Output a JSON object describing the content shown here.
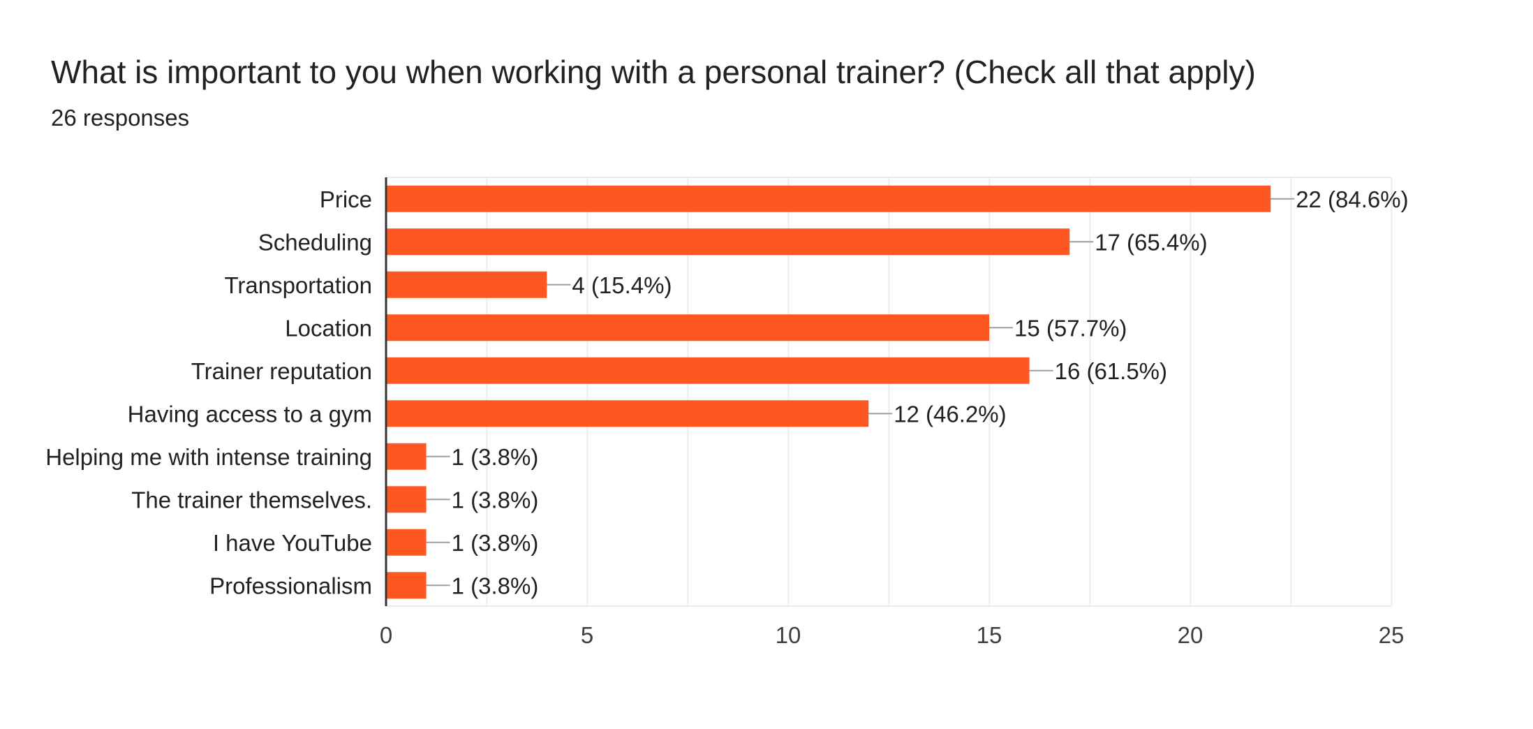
{
  "header": {
    "title": "What is important to you when working with a personal trainer? (Check all that apply)",
    "subtitle": "26 responses"
  },
  "colors": {
    "bar": "#ff5722",
    "text": "#202124",
    "axis_text": "#3c4043",
    "grid": "#ebebeb",
    "baseline": "#333333",
    "leader": "#9e9e9e"
  },
  "chart_data": {
    "type": "bar",
    "orientation": "horizontal",
    "categories": [
      "Price",
      "Scheduling",
      "Transportation",
      "Location",
      "Trainer reputation",
      "Having access to a gym",
      "Helping me with intense training",
      "The trainer themselves.",
      "I have YouTube",
      "Professionalism"
    ],
    "values": [
      22,
      17,
      4,
      15,
      16,
      12,
      1,
      1,
      1,
      1
    ],
    "data_labels": [
      "22 (84.6%)",
      "17 (65.4%)",
      "4 (15.4%)",
      "15 (57.7%)",
      "16 (61.5%)",
      "12 (46.2%)",
      "1 (3.8%)",
      "1 (3.8%)",
      "1 (3.8%)",
      "1 (3.8%)"
    ],
    "xlim": [
      0,
      25
    ],
    "x_ticks": [
      0,
      5,
      10,
      15,
      20,
      25
    ],
    "x_tick_labels": [
      "0",
      "5",
      "10",
      "15",
      "20",
      "25"
    ],
    "grid": true,
    "legend": "none",
    "xlabel": "",
    "ylabel": ""
  }
}
